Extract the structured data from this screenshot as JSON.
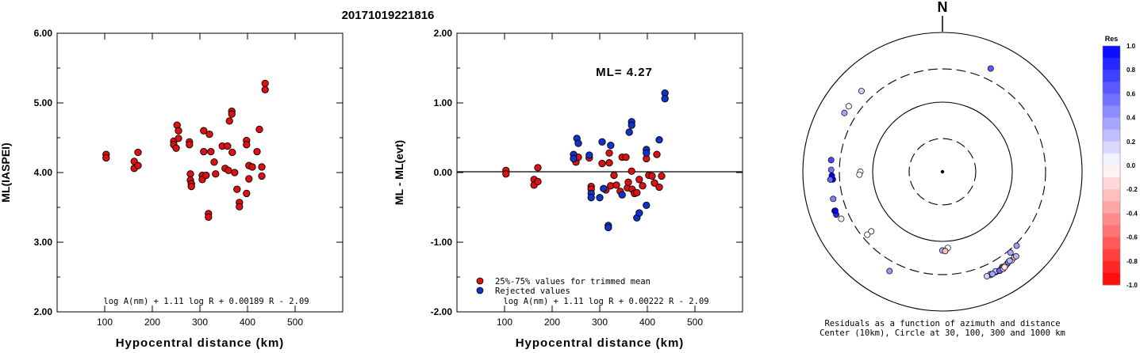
{
  "page": {
    "title": "20171019221816"
  },
  "chart_data": [
    {
      "type": "scatter",
      "name": "ml-vs-distance",
      "ylabel": "ML(IASPEI)",
      "xlabel": "Hypocentral distance (km)",
      "xlim": [
        0,
        600
      ],
      "ylim": [
        2.0,
        6.0
      ],
      "xticks": [
        "100",
        "200",
        "300",
        "400",
        "500"
      ],
      "yticks": [
        "2.00",
        "3.00",
        "4.00",
        "5.00",
        "6.00"
      ],
      "formula": "log A(nm) + 1.11 log R + 0.00189 R - 2.09",
      "point_color": "#dd1111",
      "points": [
        [
          103,
          4.26
        ],
        [
          103,
          4.21
        ],
        [
          162,
          4.16
        ],
        [
          162,
          4.06
        ],
        [
          170,
          4.1
        ],
        [
          170,
          4.29
        ],
        [
          245,
          4.45
        ],
        [
          245,
          4.4
        ],
        [
          250,
          4.35
        ],
        [
          252,
          4.68
        ],
        [
          255,
          4.6
        ],
        [
          255,
          4.49
        ],
        [
          278,
          4.44
        ],
        [
          278,
          4.4
        ],
        [
          280,
          3.98
        ],
        [
          280,
          3.89
        ],
        [
          282,
          3.84
        ],
        [
          282,
          3.8
        ],
        [
          305,
          3.96
        ],
        [
          305,
          3.9
        ],
        [
          308,
          4.6
        ],
        [
          308,
          4.3
        ],
        [
          313,
          3.96
        ],
        [
          318,
          3.41
        ],
        [
          318,
          3.36
        ],
        [
          320,
          4.55
        ],
        [
          323,
          4.3
        ],
        [
          330,
          4.15
        ],
        [
          333,
          3.98
        ],
        [
          347,
          4.38
        ],
        [
          353,
          4.06
        ],
        [
          358,
          4.38
        ],
        [
          360,
          4.03
        ],
        [
          362,
          4.74
        ],
        [
          367,
          4.88
        ],
        [
          367,
          4.84
        ],
        [
          368,
          4.29
        ],
        [
          373,
          4.0
        ],
        [
          378,
          3.76
        ],
        [
          383,
          3.57
        ],
        [
          383,
          3.51
        ],
        [
          398,
          4.46
        ],
        [
          398,
          4.4
        ],
        [
          398,
          3.7
        ],
        [
          403,
          4.1
        ],
        [
          403,
          3.91
        ],
        [
          410,
          4.08
        ],
        [
          420,
          4.3
        ],
        [
          425,
          4.62
        ],
        [
          430,
          4.08
        ],
        [
          430,
          3.95
        ],
        [
          437,
          5.28
        ],
        [
          437,
          5.19
        ]
      ]
    },
    {
      "type": "scatter",
      "name": "residual-vs-distance",
      "ylabel": "ML - ML(evt)",
      "xlabel": "Hypocentral distance (km)",
      "xlim": [
        0,
        600
      ],
      "ylim": [
        -2.0,
        2.0
      ],
      "xticks": [
        "100",
        "200",
        "300",
        "400",
        "500"
      ],
      "yticks": [
        "-2.00",
        "-1.00",
        "0.00",
        "1.00",
        "2.00"
      ],
      "annotation": "ML= 4.27",
      "formula": "log A(nm) + 1.11 log R + 0.00222 R - 2.09",
      "legend": {
        "position": "bottom-left",
        "entries": [
          {
            "label": "25%-75% values for trimmed mean",
            "color": "#dd1111"
          },
          {
            "label": "Rejected values",
            "color": "#1133cc"
          }
        ]
      },
      "trimmed": [
        [
          103,
          0.03
        ],
        [
          103,
          -0.02
        ],
        [
          162,
          -0.1
        ],
        [
          162,
          -0.18
        ],
        [
          170,
          -0.13
        ],
        [
          170,
          0.07
        ],
        [
          250,
          0.15
        ],
        [
          255,
          0.22
        ],
        [
          278,
          0.21
        ],
        [
          282,
          -0.2
        ],
        [
          282,
          -0.24
        ],
        [
          305,
          0.13
        ],
        [
          313,
          -0.25
        ],
        [
          320,
          0.28
        ],
        [
          320,
          0.14
        ],
        [
          323,
          -0.19
        ],
        [
          330,
          -0.04
        ],
        [
          335,
          -0.18
        ],
        [
          343,
          -0.27
        ],
        [
          347,
          0.22
        ],
        [
          355,
          0.22
        ],
        [
          358,
          -0.22
        ],
        [
          360,
          -0.14
        ],
        [
          367,
          0.02
        ],
        [
          368,
          -0.24
        ],
        [
          373,
          -0.3
        ],
        [
          378,
          -0.29
        ],
        [
          383,
          -0.1
        ],
        [
          390,
          -0.19
        ],
        [
          398,
          0.2
        ],
        [
          403,
          -0.04
        ],
        [
          410,
          -0.05
        ],
        [
          415,
          -0.15
        ],
        [
          420,
          0.26
        ],
        [
          425,
          -0.21
        ],
        [
          430,
          -0.05
        ]
      ],
      "rejected": [
        [
          245,
          0.26
        ],
        [
          245,
          0.2
        ],
        [
          252,
          0.49
        ],
        [
          255,
          0.42
        ],
        [
          278,
          0.25
        ],
        [
          282,
          -0.3
        ],
        [
          282,
          -0.36
        ],
        [
          300,
          -0.36
        ],
        [
          305,
          0.44
        ],
        [
          308,
          -0.23
        ],
        [
          318,
          -0.76
        ],
        [
          318,
          -0.79
        ],
        [
          323,
          0.39
        ],
        [
          347,
          -0.32
        ],
        [
          362,
          0.58
        ],
        [
          367,
          0.73
        ],
        [
          367,
          0.68
        ],
        [
          378,
          -0.65
        ],
        [
          383,
          -0.58
        ],
        [
          398,
          0.33
        ],
        [
          398,
          0.28
        ],
        [
          398,
          -0.47
        ],
        [
          425,
          0.47
        ],
        [
          437,
          1.14
        ],
        [
          437,
          1.06
        ]
      ]
    },
    {
      "type": "scatter",
      "name": "azimuth-distance-residuals",
      "north_label": "N",
      "caption_line1": "Residuals as a function of azimuth and distance",
      "caption_line2": "Center (10km), Circle at 30, 100, 300 and 1000 km",
      "ring_radii_km": [
        30,
        100,
        300,
        1000
      ],
      "ring_styles": [
        "dashed",
        "solid",
        "dashed",
        "solid"
      ],
      "colorbar_title": "Res",
      "colorbar_ticks": [
        "1.0",
        "0.8",
        "0.6",
        "0.4",
        "0.2",
        "0.0",
        "-0.2",
        "-0.4",
        "-0.6",
        "-0.8",
        "-1.0"
      ],
      "stations": [
        [
          25,
          432,
          0.65
        ],
        [
          301,
          435,
          0.35
        ],
        [
          315,
          437,
          0.2
        ],
        [
          305,
          436,
          -0.05
        ],
        [
          250,
          440,
          0.9
        ],
        [
          248,
          438,
          0.85
        ],
        [
          266,
          375,
          1.0
        ],
        [
          268,
          385,
          1.0
        ],
        [
          271,
          393,
          0.55
        ],
        [
          276,
          401,
          0.7
        ],
        [
          266,
          408,
          0.6
        ],
        [
          256,
          410,
          0.5
        ],
        [
          250,
          430,
          1.0
        ],
        [
          245,
          398,
          -0.05
        ],
        [
          270,
          150,
          0.0
        ],
        [
          268,
          155,
          -0.02
        ],
        [
          230,
          215,
          0.0
        ],
        [
          230,
          255,
          0.0
        ],
        [
          135,
          318,
          0.4
        ],
        [
          140,
          328,
          0.35
        ],
        [
          176,
          125,
          0.0
        ],
        [
          180,
          135,
          0.3
        ],
        [
          178,
          138,
          -0.25
        ],
        [
          208,
          412,
          0.4
        ],
        [
          150,
          438,
          0.35
        ],
        [
          155,
          432,
          0.25
        ],
        [
          148,
          410,
          0.5
        ],
        [
          152,
          428,
          0.8
        ],
        [
          155,
          420,
          0.45
        ],
        [
          152,
          414,
          0.3
        ],
        [
          145,
          412,
          0.4
        ],
        [
          148,
          425,
          0.4
        ],
        [
          150,
          432,
          -0.2
        ],
        [
          146,
          418,
          -0.3
        ],
        [
          142,
          410,
          -0.15
        ],
        [
          144,
          403,
          0.45
        ],
        [
          143,
          398,
          0.3
        ],
        [
          140,
          400,
          -0.25
        ],
        [
          150,
          435,
          0.6
        ],
        [
          148,
          440,
          -0.3
        ],
        [
          157,
          425,
          0.2
        ],
        [
          154,
          430,
          0.35
        ],
        [
          139,
          405,
          0.3
        ],
        [
          147,
          430,
          -0.1
        ]
      ]
    }
  ]
}
